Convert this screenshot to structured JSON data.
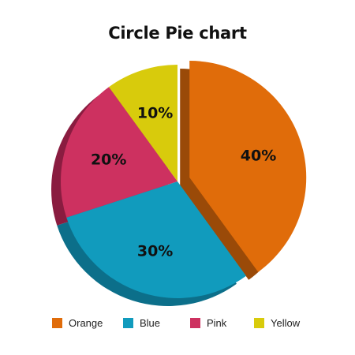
{
  "chart_data": {
    "type": "pie",
    "title": "Circle Pie chart",
    "categories": [
      "Orange",
      "Blue",
      "Pink",
      "Yellow"
    ],
    "values": [
      40,
      30,
      20,
      10
    ],
    "value_labels": [
      "40%",
      "30%",
      "20%",
      "10%"
    ],
    "colors": [
      "#e06c0a",
      "#119bbd",
      "#cd3160",
      "#d8cb0c"
    ],
    "side_colors": [
      "#9a4a08",
      "#0c6f8a",
      "#8a1c40",
      "#9a8f0a"
    ],
    "exploded": [
      "Orange"
    ],
    "legend_position": "bottom"
  }
}
